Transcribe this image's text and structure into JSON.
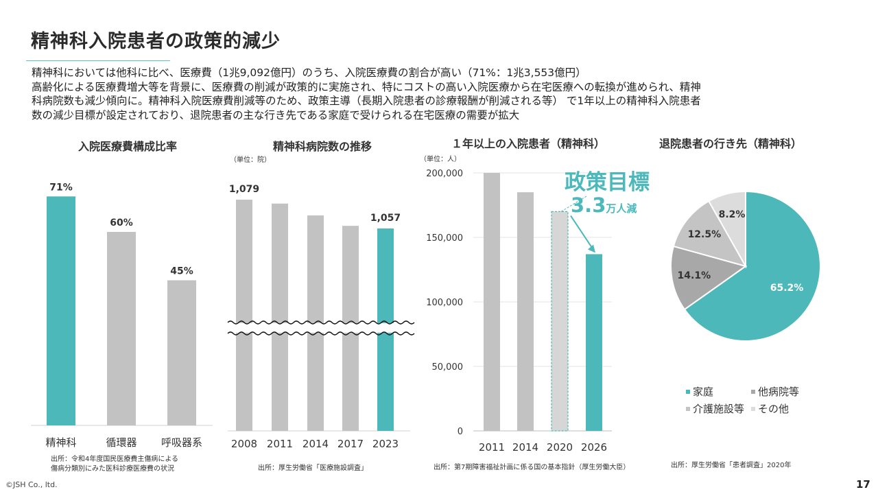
{
  "slide": {
    "title": "精神科入院患者の政策的減少",
    "intro": [
      "精神科においては他科に比べ、医療費（1兆9,092億円）のうち、入院医療費の割合が高い（71%：1兆3,553億円）",
      "高齢化による医療費増大等を背景に、医療費の削減が政策的に実施され、特にコストの高い入院医療から在宅医療への転換が進められ、精神",
      "科病院数も減少傾向に。精神科入院医療費削減等のため、政策主導（長期入院患者の診療報酬が削減される等） で1年以上の精神科入院患者",
      "数の減少目標が設定されており、退院患者の主な行き先である家庭で受けられる在宅医療の需要が拡大"
    ],
    "copyright": "©JSH Co., ltd.",
    "page_number": "17"
  },
  "colors": {
    "accent": "#4db8b9",
    "gray": "#c2c2c2",
    "dark_gray": "#a9a9a9",
    "light_gray": "#d9d9d9"
  },
  "policy_target": {
    "label": "政策目標",
    "value": "3.3",
    "unit": "万人減"
  },
  "chart_data": [
    {
      "type": "bar",
      "title": "入院医療費構成比率",
      "categories": [
        "精神科",
        "循環器",
        "呼吸器系"
      ],
      "values": [
        71,
        60,
        45
      ],
      "labels": [
        "71%",
        "60%",
        "45%"
      ],
      "ylim": [
        0,
        100
      ],
      "highlight_index": 0,
      "source": [
        "出所：令和4年度国民医療費主傷病による",
        "傷病分類別にみた医科診療医療費の状況"
      ]
    },
    {
      "type": "bar",
      "title": "精神科病院数の推移",
      "unit": "（単位：院）",
      "categories": [
        "2008",
        "2011",
        "2014",
        "2017",
        "2023"
      ],
      "values": [
        1079,
        1076,
        1067,
        1059,
        1057
      ],
      "labels": [
        "1,079",
        "",
        "",
        "",
        "1,057"
      ],
      "axis_break": true,
      "highlight_index": 4,
      "source": [
        "出所：厚生労働省「医療施設調査」"
      ]
    },
    {
      "type": "bar",
      "title": "１年以上の入院患者（精神科）",
      "unit": "（単位：人）",
      "categories": [
        "2011",
        "2014",
        "2020",
        "2026"
      ],
      "values": [
        200000,
        185000,
        170000,
        137000
      ],
      "ylim": [
        0,
        200000
      ],
      "yticks": [
        {
          "value": 0,
          "label": "0"
        },
        {
          "value": 50000,
          "label": "50,000"
        },
        {
          "value": 100000,
          "label": "100,000"
        },
        {
          "value": 150000,
          "label": "150,000"
        },
        {
          "value": 200000,
          "label": "200,000"
        }
      ],
      "dashed_index": 2,
      "highlight_index": 3,
      "source": [
        "出所：第7期障害福祉計画に係る国の基本指針（厚生労働大臣）"
      ]
    },
    {
      "type": "pie",
      "title": "退院患者の行き先（精神科）",
      "slices": [
        {
          "name": "家庭",
          "value": 65.2,
          "label": "65.2%",
          "color": "#4db8b9"
        },
        {
          "name": "他病院等",
          "value": 14.1,
          "label": "14.1%",
          "color": "#a8a8a8"
        },
        {
          "name": "介護施設等",
          "value": 12.5,
          "label": "12.5%",
          "color": "#c4c4c4"
        },
        {
          "name": "その他",
          "value": 8.2,
          "label": "8.2%",
          "color": "#dcdcdc"
        }
      ],
      "legend_position": "bottom",
      "source": [
        "出所：厚生労働省「患者調査」2020年"
      ]
    }
  ]
}
